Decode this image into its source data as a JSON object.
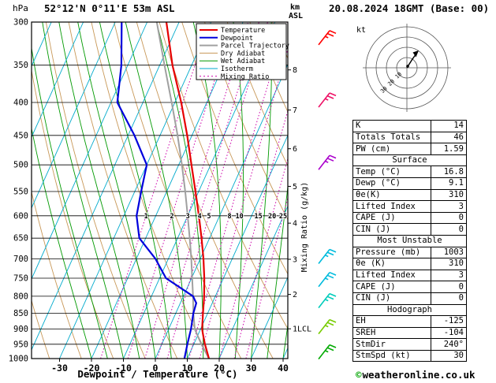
{
  "header": {
    "pressure_unit": "hPa",
    "station": "52°12'N 0°11'E 53m ASL",
    "km_unit": "km",
    "asl_unit": "ASL",
    "datetime": "20.08.2024 18GMT (Base: 00)"
  },
  "axes": {
    "xlabel": "Dewpoint / Temperature (°C)",
    "mixing_ratio_label": "Mixing Ratio (g/kg)",
    "pressure_ticks": [
      300,
      350,
      400,
      450,
      500,
      550,
      600,
      650,
      700,
      750,
      800,
      850,
      900,
      950,
      1000
    ],
    "temp_ticks": [
      -30,
      -20,
      -10,
      0,
      10,
      20,
      30,
      40
    ],
    "km_ticks": [
      {
        "p": 356,
        "label": "8"
      },
      {
        "p": 411,
        "label": "7"
      },
      {
        "p": 472,
        "label": "6"
      },
      {
        "p": 540,
        "label": "5"
      },
      {
        "p": 616,
        "label": "4"
      },
      {
        "p": 701,
        "label": "3"
      },
      {
        "p": 795,
        "label": "2"
      },
      {
        "p": 899,
        "label": "1LCL"
      }
    ]
  },
  "legend": [
    {
      "label": "Temperature",
      "color": "#e60000",
      "dash": "",
      "width": 2
    },
    {
      "label": "Dewpoint",
      "color": "#0000dd",
      "dash": "",
      "width": 2
    },
    {
      "label": "Parcel Trajectory",
      "color": "#a0a0a0",
      "dash": "",
      "width": 2
    },
    {
      "label": "Dry Adiabat",
      "color": "#c89858",
      "dash": "",
      "width": 1
    },
    {
      "label": "Wet Adiabat",
      "color": "#009900",
      "dash": "",
      "width": 1
    },
    {
      "label": "Isotherm",
      "color": "#00aacc",
      "dash": "",
      "width": 1
    },
    {
      "label": "Mixing Ratio",
      "color": "#cc00aa",
      "dash": "2 3",
      "width": 1
    }
  ],
  "chart_data": {
    "type": "skewt-logp",
    "title": "52°12'N 0°11'E 53m ASL",
    "datetime": "20.08.2024 18GMT (Base: 00)",
    "pressure_range_hPa": [
      300,
      1000
    ],
    "temp_axis_range_C": [
      -30,
      40
    ],
    "temperature_profile_p_T": [
      [
        1000,
        16.8
      ],
      [
        950,
        13.5
      ],
      [
        925,
        12
      ],
      [
        900,
        10.5
      ],
      [
        850,
        8.5
      ],
      [
        800,
        6.5
      ],
      [
        750,
        4
      ],
      [
        700,
        1
      ],
      [
        650,
        -2.5
      ],
      [
        600,
        -6.5
      ],
      [
        550,
        -11
      ],
      [
        500,
        -16
      ],
      [
        450,
        -21.5
      ],
      [
        400,
        -28
      ],
      [
        350,
        -36
      ],
      [
        300,
        -44
      ]
    ],
    "dewpoint_profile_p_T": [
      [
        1000,
        9.1
      ],
      [
        950,
        8
      ],
      [
        900,
        7
      ],
      [
        850,
        5.5
      ],
      [
        820,
        5
      ],
      [
        800,
        3
      ],
      [
        750,
        -8
      ],
      [
        700,
        -14
      ],
      [
        650,
        -22
      ],
      [
        600,
        -26
      ],
      [
        550,
        -28
      ],
      [
        500,
        -30
      ],
      [
        450,
        -38
      ],
      [
        400,
        -48
      ],
      [
        350,
        -52
      ],
      [
        300,
        -58
      ]
    ],
    "parcel_profile_p_T": [
      [
        1000,
        16.8
      ],
      [
        950,
        12.4
      ],
      [
        900,
        8.2
      ],
      [
        850,
        5.5
      ],
      [
        800,
        3
      ],
      [
        750,
        0.2
      ],
      [
        700,
        -2.8
      ],
      [
        650,
        -6.2
      ],
      [
        600,
        -10
      ],
      [
        550,
        -14.2
      ],
      [
        500,
        -19
      ],
      [
        450,
        -24.5
      ],
      [
        400,
        -31
      ],
      [
        350,
        -38.5
      ],
      [
        300,
        -47
      ]
    ],
    "mixing_ratio_lines_gkg": [
      1,
      2,
      3,
      4,
      5,
      8,
      10,
      15,
      20,
      25
    ],
    "winds": [
      {
        "p": 320,
        "color": "#ff0000"
      },
      {
        "p": 400,
        "color": "#ee1166"
      },
      {
        "p": 500,
        "color": "#aa00cc"
      },
      {
        "p": 700,
        "color": "#00bbdd"
      },
      {
        "p": 760,
        "color": "#00bbdd"
      },
      {
        "p": 820,
        "color": "#00ccbb"
      },
      {
        "p": 900,
        "color": "#77cc00"
      },
      {
        "p": 985,
        "color": "#00aa00"
      }
    ]
  },
  "hodograph": {
    "unit": "kt",
    "rings_kt": [
      10,
      20,
      30,
      40
    ],
    "ring_labels": [
      "10",
      "20",
      "30"
    ]
  },
  "table": {
    "sections": [
      {
        "title": "",
        "rows": [
          [
            "K",
            "14"
          ],
          [
            "Totals Totals",
            "46"
          ],
          [
            "PW (cm)",
            "1.59"
          ]
        ]
      },
      {
        "title": "Surface",
        "rows": [
          [
            "Temp (°C)",
            "16.8"
          ],
          [
            "Dewp (°C)",
            "9.1"
          ],
          [
            "θe(K)",
            "310"
          ],
          [
            "Lifted Index",
            "3"
          ],
          [
            "CAPE (J)",
            "0"
          ],
          [
            "CIN (J)",
            "0"
          ]
        ]
      },
      {
        "title": "Most Unstable",
        "rows": [
          [
            "Pressure (mb)",
            "1003"
          ],
          [
            "θe (K)",
            "310"
          ],
          [
            "Lifted Index",
            "3"
          ],
          [
            "CAPE (J)",
            "0"
          ],
          [
            "CIN (J)",
            "0"
          ]
        ]
      },
      {
        "title": "Hodograph",
        "rows": [
          [
            "EH",
            "-125"
          ],
          [
            "SREH",
            "-104"
          ],
          [
            "StmDir",
            "240°"
          ],
          [
            "StmSpd (kt)",
            "30"
          ]
        ]
      }
    ]
  },
  "copyright_symbol": "©",
  "copyright": "weatheronline.co.uk"
}
